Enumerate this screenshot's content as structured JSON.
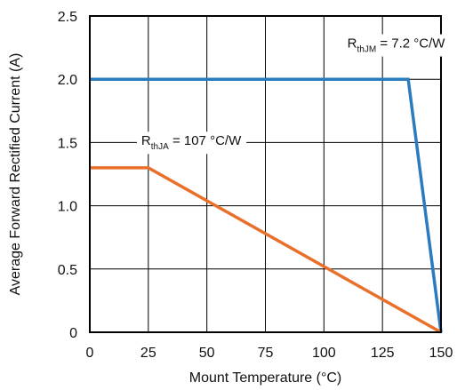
{
  "chart_data": {
    "type": "line",
    "xlabel": "Mount Temperature (°C)",
    "ylabel": "Average Forward Rectified Current (A)",
    "xlim": [
      0,
      150
    ],
    "ylim": [
      0,
      2.5
    ],
    "x_ticks": [
      0,
      25,
      50,
      75,
      100,
      125,
      150
    ],
    "x_tick_labels": [
      "0",
      "25",
      "50",
      "75",
      "100",
      "125",
      "150"
    ],
    "y_ticks": [
      0,
      0.5,
      1.0,
      1.5,
      2.0,
      2.5
    ],
    "y_tick_labels": [
      "0",
      "0.5",
      "1.0",
      "1.5",
      "2.0",
      "2.5"
    ],
    "grid": true,
    "series": [
      {
        "color": "#2b7bbf",
        "points": [
          [
            0,
            2.0
          ],
          [
            136,
            2.0
          ],
          [
            150,
            0
          ]
        ]
      },
      {
        "color": "#e8702a",
        "points": [
          [
            0,
            1.3
          ],
          [
            25,
            1.3
          ],
          [
            150,
            0
          ]
        ]
      }
    ],
    "annotations": [
      {
        "main": "R",
        "sub": "thJM",
        "rest": " = 7.2 °C/W",
        "x": 110,
        "y": 2.25
      },
      {
        "main": "R",
        "sub": "thJA",
        "rest": " = 107 °C/W",
        "x": 22,
        "y": 1.48
      }
    ]
  }
}
